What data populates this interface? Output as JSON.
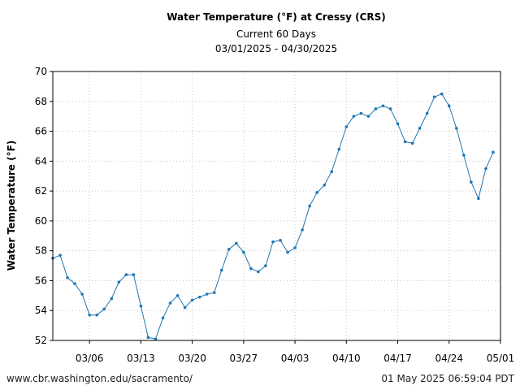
{
  "chart_data": {
    "type": "line",
    "title": "Water Temperature (°F) at Cressy (CRS)",
    "subtitle": "Current 60 Days",
    "date_range": "03/01/2025 - 04/30/2025",
    "xlabel": "",
    "ylabel": "Water Temperature (°F)",
    "ylim": [
      52,
      70
    ],
    "yticks": [
      52,
      54,
      56,
      58,
      60,
      62,
      64,
      66,
      68,
      70
    ],
    "xlim": [
      "03/01",
      "05/01"
    ],
    "xticks": [
      "03/06",
      "03/13",
      "03/20",
      "03/27",
      "04/03",
      "04/10",
      "04/17",
      "04/24",
      "05/01"
    ],
    "grid": true,
    "line_color": "#1f77b4",
    "series": [
      {
        "x": [
          "03/01",
          "03/02",
          "03/03",
          "03/04",
          "03/05",
          "03/06",
          "03/07",
          "03/08",
          "03/09",
          "03/10",
          "03/11",
          "03/12",
          "03/13",
          "03/14",
          "03/15",
          "03/16",
          "03/17",
          "03/18",
          "03/19",
          "03/20",
          "03/21",
          "03/22",
          "03/23",
          "03/24",
          "03/25",
          "03/26",
          "03/27",
          "03/28",
          "03/29",
          "03/30",
          "03/31",
          "04/01",
          "04/02",
          "04/03",
          "04/04",
          "04/05",
          "04/06",
          "04/07",
          "04/08",
          "04/09",
          "04/10",
          "04/11",
          "04/12",
          "04/13",
          "04/14",
          "04/15",
          "04/16",
          "04/17",
          "04/18",
          "04/19",
          "04/20",
          "04/21",
          "04/22",
          "04/23",
          "04/24",
          "04/25",
          "04/26",
          "04/27",
          "04/28",
          "04/29",
          "04/30"
        ],
        "values": [
          57.5,
          57.7,
          56.2,
          55.8,
          55.1,
          53.7,
          53.7,
          54.1,
          54.8,
          55.9,
          56.4,
          56.4,
          54.3,
          52.2,
          52.1,
          53.5,
          54.5,
          55.0,
          54.2,
          54.7,
          54.9,
          55.1,
          55.2,
          56.7,
          58.1,
          58.5,
          57.9,
          56.8,
          56.6,
          57.0,
          58.6,
          58.7,
          57.9,
          58.2,
          59.4,
          61.0,
          61.9,
          62.4,
          63.3,
          64.8,
          66.3,
          67.0,
          67.2,
          67.0,
          67.5,
          67.7,
          67.5,
          66.5,
          65.3,
          65.2,
          66.2,
          67.2,
          68.3,
          68.5,
          67.7,
          66.2,
          64.4,
          62.6,
          61.5,
          63.5,
          64.6
        ]
      }
    ]
  },
  "footer": {
    "source": "www.cbr.washington.edu/sacramento/",
    "timestamp": "01 May 2025 06:59:04 PDT"
  }
}
